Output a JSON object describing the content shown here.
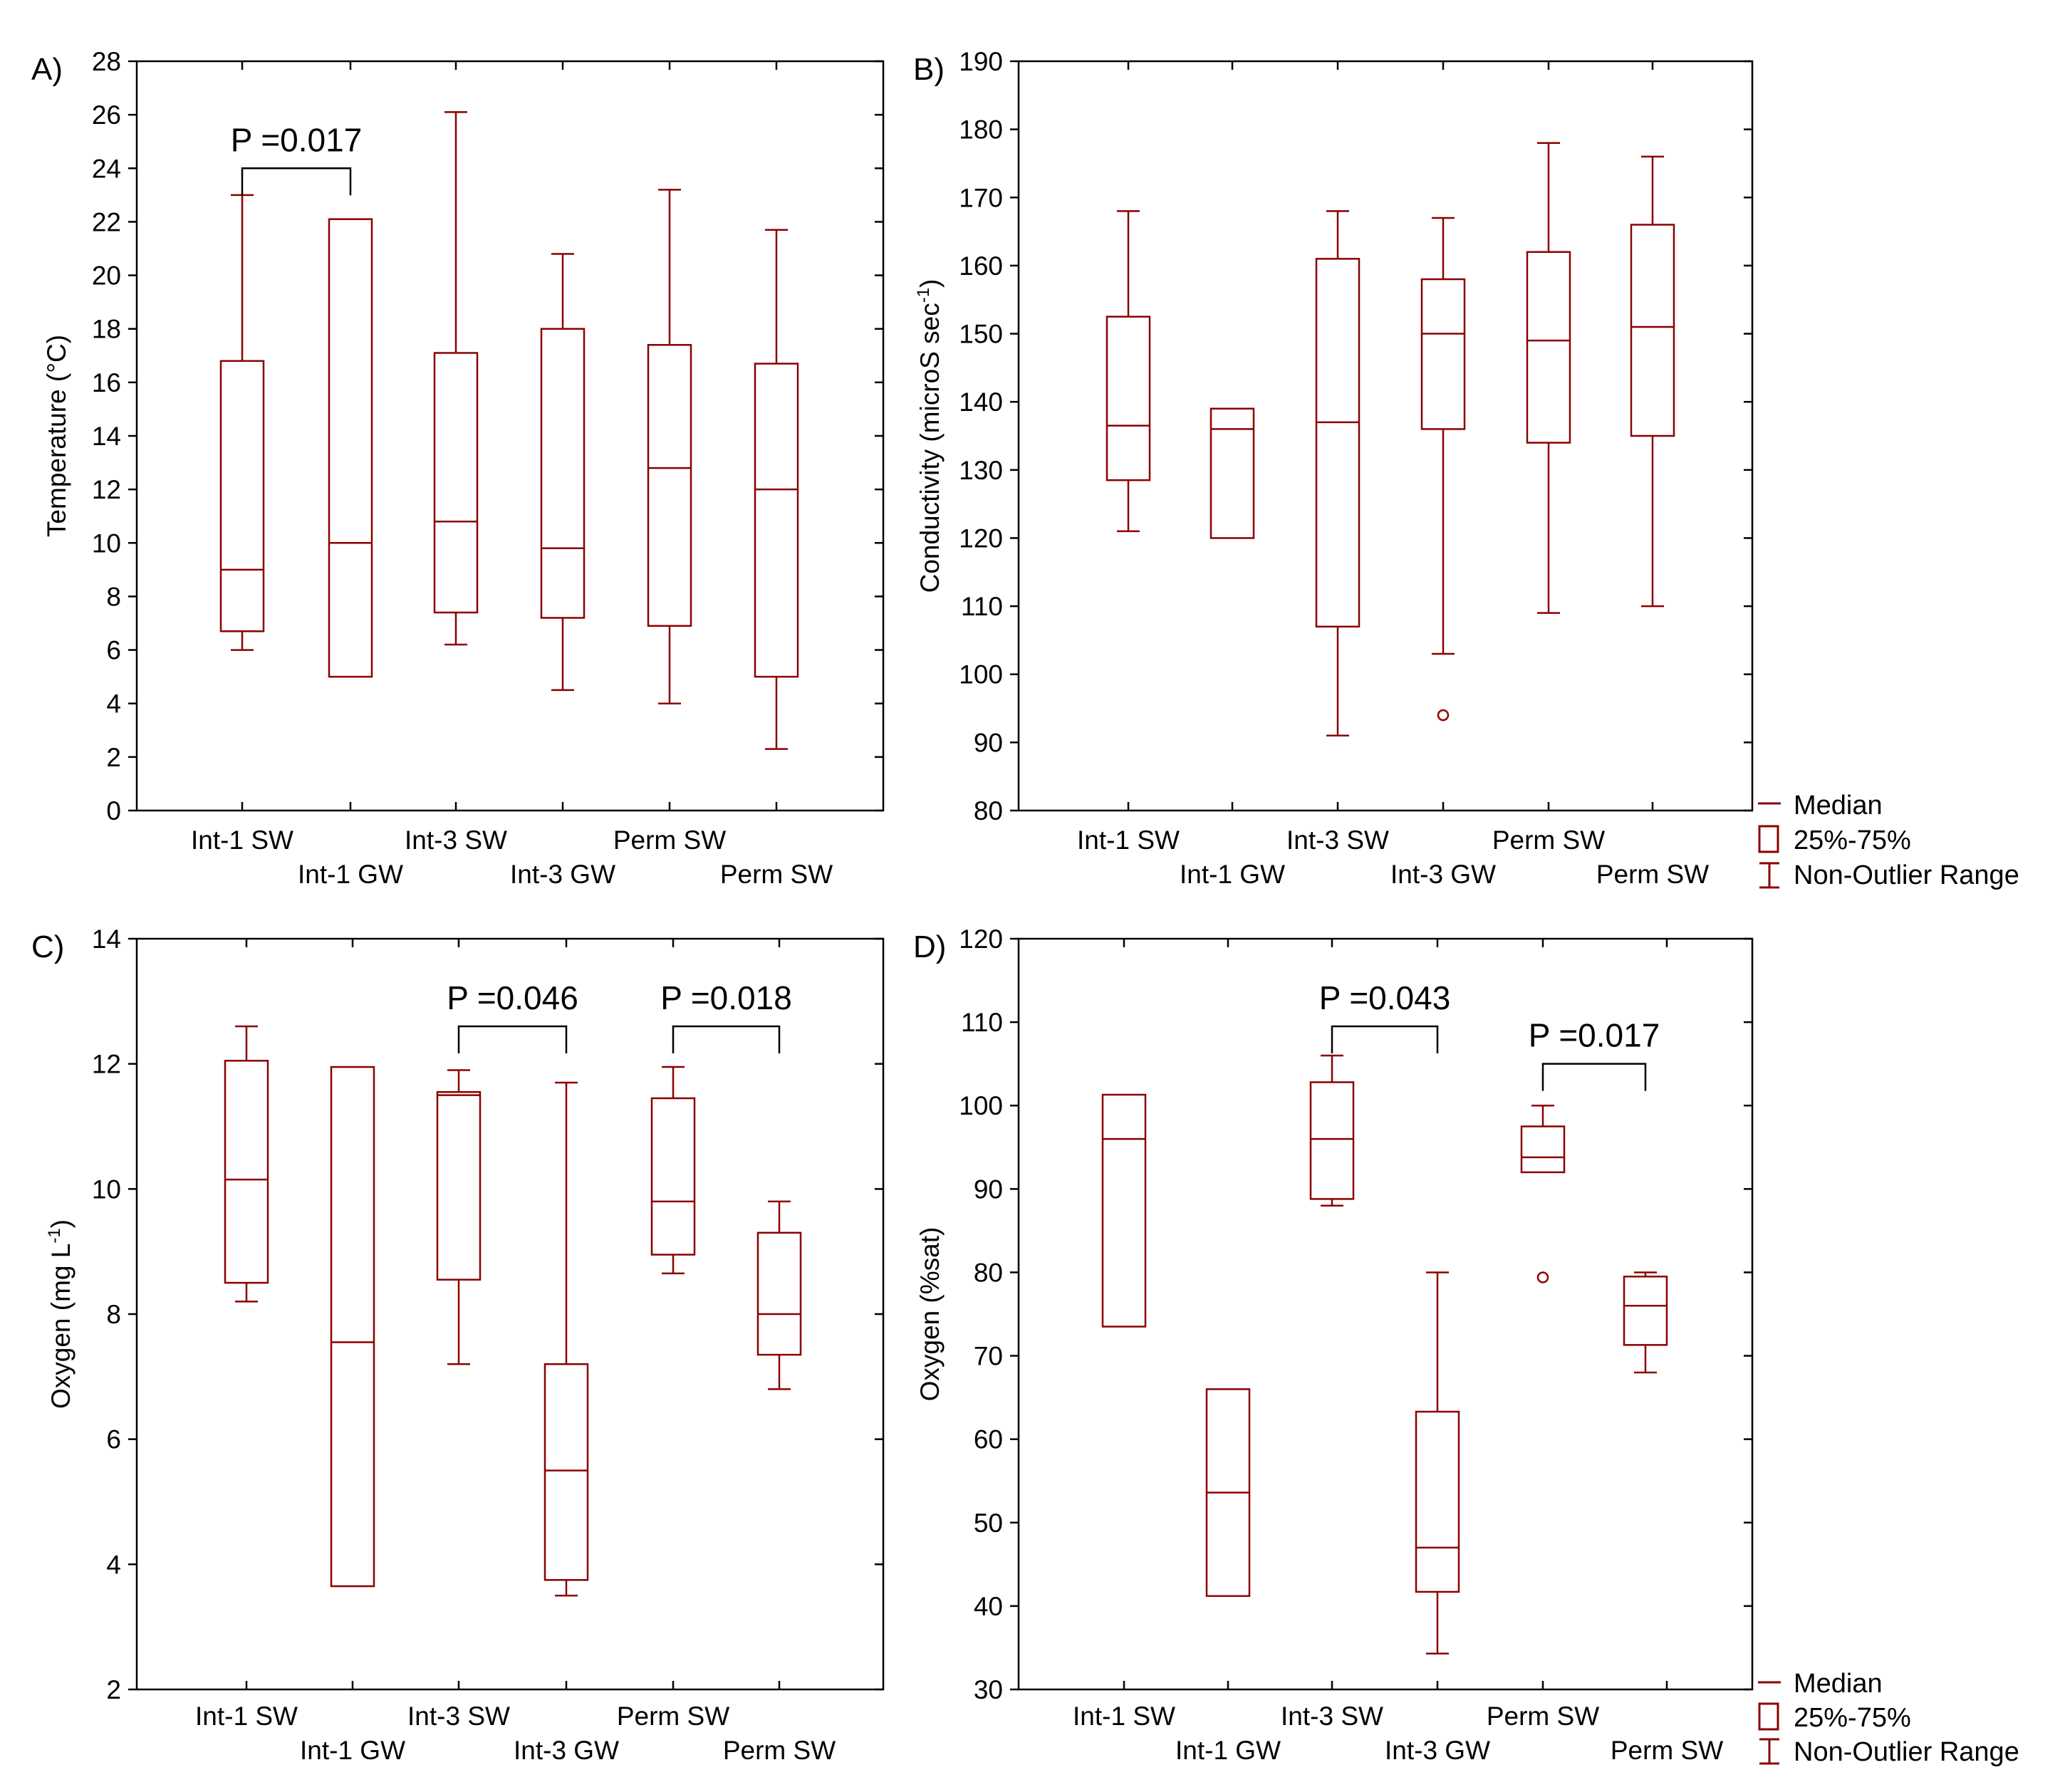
{
  "colors": {
    "box": "#8B0000",
    "axis": "#000000",
    "background": "#FFFFFF"
  },
  "legends": [
    {
      "panels": "A-B",
      "median": "Median",
      "box": "25%-75%",
      "range": "Non-Outlier Range"
    },
    {
      "panels": "C-D",
      "median": "Median",
      "box": "25%-75%",
      "range": "Non-Outlier Range"
    }
  ],
  "chart_data": [
    {
      "type": "box",
      "panel_label": "A)",
      "ylabel": "Temperature (°C)",
      "ylim": [
        0,
        28
      ],
      "yticks": [
        0,
        2,
        4,
        6,
        8,
        10,
        12,
        14,
        16,
        18,
        20,
        22,
        24,
        26,
        28
      ],
      "categories": [
        "Int-1 SW",
        "Int-1 GW",
        "Int-3 SW",
        "Int-3 GW",
        "Perm SW",
        "Perm SW"
      ],
      "boxes": [
        {
          "min": 6.0,
          "q1": 6.7,
          "median": 9.0,
          "q3": 16.8,
          "max": 23.0,
          "outliers": []
        },
        {
          "min": 5.0,
          "q1": 5.0,
          "median": 10.0,
          "q3": 22.1,
          "max": 22.1,
          "outliers": []
        },
        {
          "min": 6.2,
          "q1": 7.4,
          "median": 10.8,
          "q3": 17.1,
          "max": 26.1,
          "outliers": []
        },
        {
          "min": 4.5,
          "q1": 7.2,
          "median": 9.8,
          "q3": 18.0,
          "max": 20.8,
          "outliers": []
        },
        {
          "min": 4.0,
          "q1": 6.9,
          "median": 12.8,
          "q3": 17.4,
          "max": 23.2,
          "outliers": []
        },
        {
          "min": 2.3,
          "q1": 5.0,
          "median": 12.0,
          "q3": 16.7,
          "max": 21.7,
          "outliers": []
        }
      ],
      "annotations": [
        {
          "from": 0,
          "to": 1,
          "y": 24.0,
          "text": "P =0.017"
        }
      ]
    },
    {
      "type": "box",
      "panel_label": "B)",
      "ylabel": "Conductivity (microS sec",
      "ylabel_sup": "-1",
      "ylabel_end": ")",
      "ylim": [
        80,
        190
      ],
      "yticks": [
        80,
        90,
        100,
        110,
        120,
        130,
        140,
        150,
        160,
        170,
        180,
        190
      ],
      "categories": [
        "Int-1 SW",
        "Int-1 GW",
        "Int-3 SW",
        "Int-3 GW",
        "Perm SW",
        "Perm SW"
      ],
      "boxes": [
        {
          "min": 121,
          "q1": 128.5,
          "median": 136.5,
          "q3": 152.5,
          "max": 168,
          "outliers": []
        },
        {
          "min": 120,
          "q1": 120,
          "median": 136,
          "q3": 139,
          "max": 139,
          "outliers": []
        },
        {
          "min": 91,
          "q1": 107,
          "median": 137,
          "q3": 161,
          "max": 168,
          "outliers": []
        },
        {
          "min": 103,
          "q1": 136,
          "median": 150,
          "q3": 158,
          "max": 167,
          "outliers": [
            94
          ]
        },
        {
          "min": 109,
          "q1": 134,
          "median": 149,
          "q3": 162,
          "max": 178,
          "outliers": []
        },
        {
          "min": 110,
          "q1": 135,
          "median": 151,
          "q3": 166,
          "max": 176,
          "outliers": []
        }
      ],
      "annotations": []
    },
    {
      "type": "box",
      "panel_label": "C)",
      "ylabel": "Oxygen (mg L",
      "ylabel_sup": "-1",
      "ylabel_end": ")",
      "ylim": [
        2,
        14
      ],
      "yticks": [
        2,
        4,
        6,
        8,
        10,
        12,
        14
      ],
      "categories": [
        "Int-1 SW",
        "Int-1 GW",
        "Int-3 SW",
        "Int-3 GW",
        "Perm SW",
        "Perm SW"
      ],
      "boxes": [
        {
          "min": 8.2,
          "q1": 8.5,
          "median": 10.15,
          "q3": 12.05,
          "max": 12.6,
          "outliers": []
        },
        {
          "min": 3.65,
          "q1": 3.65,
          "median": 7.55,
          "q3": 11.95,
          "max": 11.95,
          "outliers": []
        },
        {
          "min": 7.2,
          "q1": 8.55,
          "median": 11.5,
          "q3": 11.55,
          "max": 11.9,
          "outliers": []
        },
        {
          "min": 3.5,
          "q1": 3.75,
          "median": 5.5,
          "q3": 7.2,
          "max": 11.7,
          "outliers": []
        },
        {
          "min": 8.65,
          "q1": 8.95,
          "median": 9.8,
          "q3": 11.45,
          "max": 11.95,
          "outliers": []
        },
        {
          "min": 6.8,
          "q1": 7.35,
          "median": 8.0,
          "q3": 9.3,
          "max": 9.8,
          "outliers": []
        }
      ],
      "annotations": [
        {
          "from": 2,
          "to": 3,
          "y": 12.6,
          "text": "P =0.046"
        },
        {
          "from": 4,
          "to": 5,
          "y": 12.6,
          "text": "P =0.018"
        }
      ]
    },
    {
      "type": "box",
      "panel_label": "D)",
      "ylabel": "Oxygen (%sat)",
      "ylim": [
        30,
        120
      ],
      "yticks": [
        30,
        40,
        50,
        60,
        70,
        80,
        90,
        100,
        110,
        120
      ],
      "categories": [
        "Int-1 SW",
        "Int-1 GW",
        "Int-3 SW",
        "Int-3 GW",
        "Perm SW",
        "Perm SW"
      ],
      "boxes": [
        {
          "min": 73.5,
          "q1": 73.5,
          "median": 96,
          "q3": 101.3,
          "max": 101.3,
          "outliers": []
        },
        {
          "min": 41.2,
          "q1": 41.2,
          "median": 53.6,
          "q3": 66,
          "max": 66,
          "outliers": []
        },
        {
          "min": 88,
          "q1": 88.8,
          "median": 96,
          "q3": 102.8,
          "max": 106,
          "outliers": []
        },
        {
          "min": 34.3,
          "q1": 41.7,
          "median": 47,
          "q3": 63.3,
          "max": 80,
          "outliers": []
        },
        {
          "min": 92,
          "q1": 92,
          "median": 93.8,
          "q3": 97.5,
          "max": 100,
          "outliers": [
            79.4
          ]
        },
        {
          "min": 68,
          "q1": 71.3,
          "median": 76,
          "q3": 79.5,
          "max": 80,
          "outliers": []
        }
      ],
      "annotations": [
        {
          "from": 2,
          "to": 3,
          "y": 109.5,
          "text": "P =0.043"
        },
        {
          "from": 4,
          "to": 5,
          "y": 105,
          "text": "P =0.017"
        }
      ]
    }
  ]
}
